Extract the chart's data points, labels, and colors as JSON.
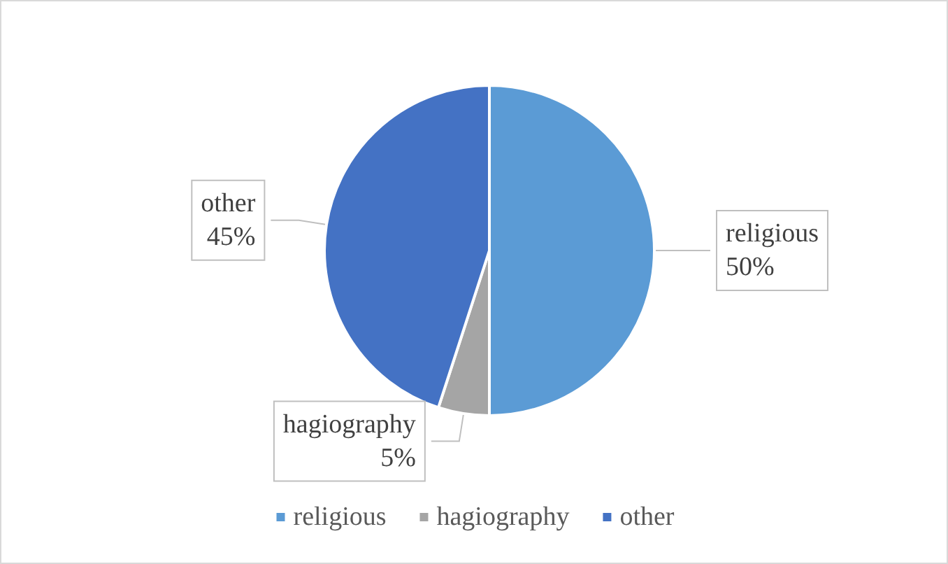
{
  "chart_data": {
    "type": "pie",
    "categories": [
      "religious",
      "hagiography",
      "other"
    ],
    "values": [
      50,
      5,
      45
    ],
    "value_labels": [
      "50%",
      "5%",
      "45%"
    ],
    "colors": [
      "#5b9bd5",
      "#a5a5a5",
      "#4472c4"
    ],
    "legend": "bottom"
  }
}
